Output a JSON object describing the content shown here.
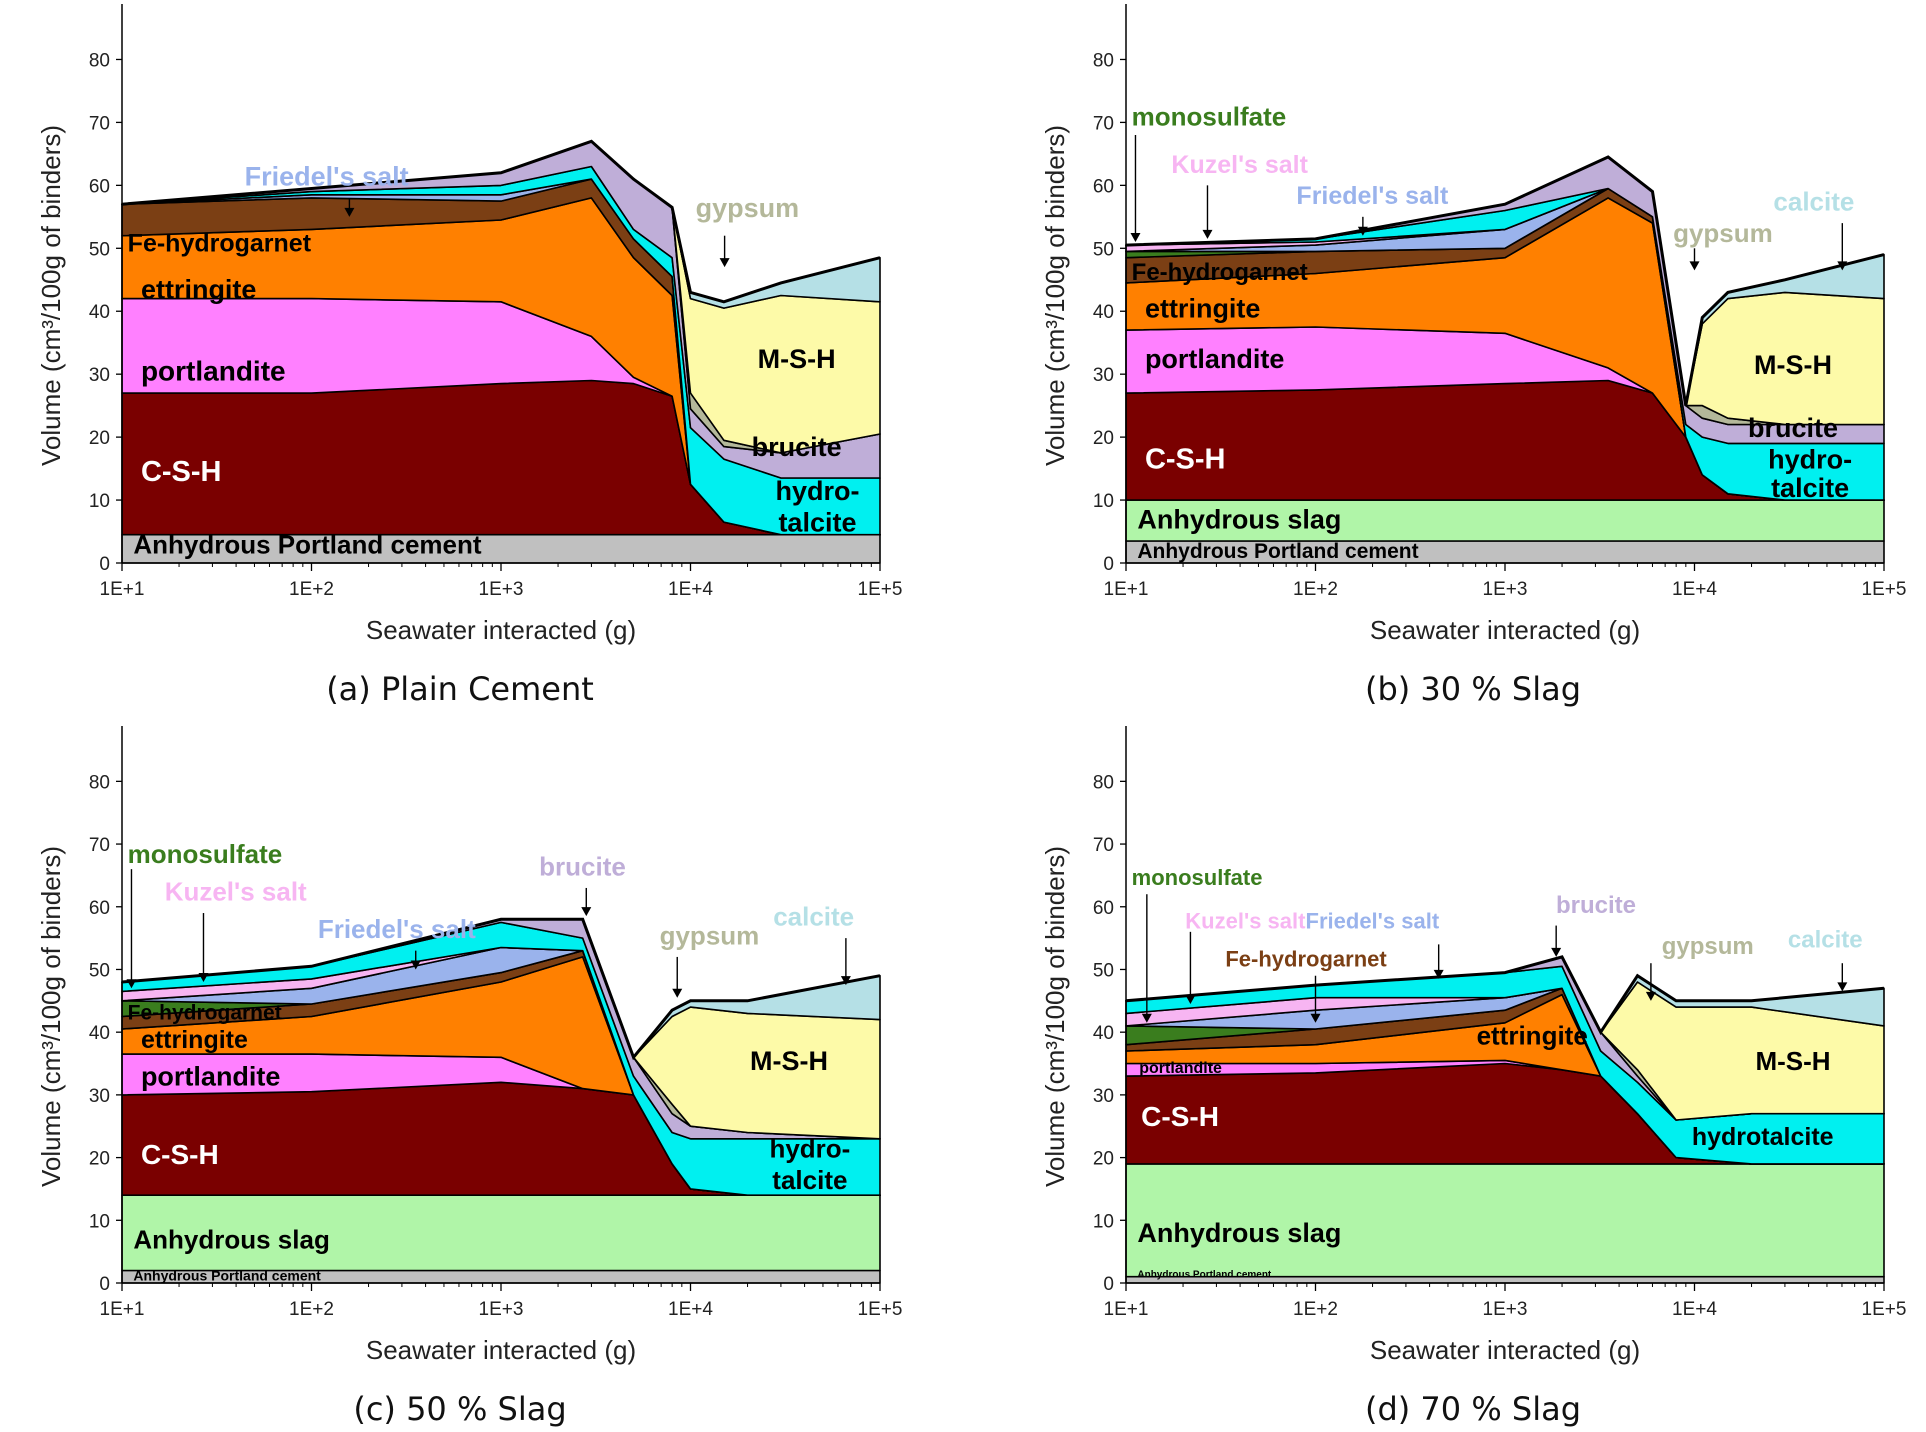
{
  "axes": {
    "xlabel": "Seawater interacted (g)",
    "ylabel": "Volume (cm³/100g of binders)",
    "xticks": [
      "1E+1",
      "1E+2",
      "1E+3",
      "1E+4",
      "1E+5"
    ],
    "yticks": [
      "0",
      "10",
      "20",
      "30",
      "40",
      "50",
      "60",
      "70",
      "80"
    ]
  },
  "colors": {
    "anhydrous_pc": "#c0c0c0",
    "anhydrous_slag": "#b0f5a8",
    "csh": "#7a0000",
    "portlandite": "#ff80ff",
    "ettringite": "#ff8000",
    "fe_hydrogarnet": "#7b3f14",
    "monosulfate": "#3a7d1e",
    "kuzels_salt": "#f7b5f2",
    "friedels_salt": "#9ab3ec",
    "cyan_phase": "#00f0f0",
    "brucite": "#bfaed8",
    "gypsum": "#b4b89a",
    "calcite": "#b5e0e6",
    "msh": "#fdfaa8",
    "hydrotalcite": "#00f0f0"
  },
  "chart_data": [
    {
      "type": "area",
      "caption": "(a) Plain Cement",
      "x_scale": "log",
      "xlim": [
        10,
        100000
      ],
      "ylim": [
        0,
        85
      ],
      "xlabel": "Seawater interacted (g)",
      "ylabel": "Volume (cm³/100g of binders)",
      "x": [
        10,
        100,
        1000,
        3000,
        5000,
        8000,
        10000,
        15000,
        30000,
        100000
      ],
      "series": [
        {
          "name": "Anhydrous Portland cement",
          "values": [
            4.5,
            4.5,
            4.5,
            4.5,
            4.5,
            4.5,
            4.5,
            4.5,
            4.5,
            4.5
          ]
        },
        {
          "name": "C-S-H",
          "values": [
            22.5,
            22.5,
            24,
            24.5,
            24,
            22,
            8,
            2,
            0,
            0
          ]
        },
        {
          "name": "portlandite",
          "values": [
            15,
            15,
            13,
            7,
            1,
            0,
            0,
            0,
            0,
            0
          ]
        },
        {
          "name": "ettringite",
          "values": [
            10,
            11,
            13,
            22,
            19,
            16,
            0,
            0,
            0,
            0
          ]
        },
        {
          "name": "Fe-hydrogarnet",
          "values": [
            5,
            5,
            3,
            3,
            3,
            3,
            0,
            0,
            0,
            0
          ]
        },
        {
          "name": "Friedel's salt",
          "values": [
            0,
            0.5,
            1,
            0,
            0,
            0,
            0,
            0,
            0,
            0
          ]
        },
        {
          "name": "hydrotalcite",
          "values": [
            0,
            0.5,
            1.5,
            2,
            1.5,
            3,
            9,
            10,
            9,
            9
          ]
        },
        {
          "name": "brucite",
          "values": [
            0,
            0.5,
            2,
            4,
            8,
            8,
            3,
            2,
            4,
            7
          ]
        },
        {
          "name": "gypsum",
          "values": [
            0,
            0,
            0,
            0,
            0,
            0,
            2.5,
            1,
            0,
            0
          ]
        },
        {
          "name": "M-S-H",
          "values": [
            0,
            0,
            0,
            0,
            0,
            0,
            15,
            21,
            25,
            21
          ]
        },
        {
          "name": "calcite",
          "values": [
            0,
            0,
            0,
            0,
            0,
            0,
            1,
            1,
            2,
            7
          ]
        }
      ],
      "labels": [
        "Fe-hydrogarnet",
        "ettringite",
        "portlandite",
        "C-S-H",
        "Anhydrous Portland cement",
        "Friedel's salt",
        "gypsum",
        "M-S-H",
        "brucite",
        "hydro-",
        "talcite"
      ]
    },
    {
      "type": "area",
      "caption": "(b) 30 % Slag",
      "x_scale": "log",
      "xlim": [
        10,
        100000
      ],
      "ylim": [
        0,
        85
      ],
      "xlabel": "Seawater interacted (g)",
      "ylabel": "Volume (cm³/100g of binders)",
      "x": [
        10,
        100,
        1000,
        3500,
        6000,
        9000,
        11000,
        15000,
        30000,
        100000
      ],
      "series": [
        {
          "name": "Anhydrous Portland cement",
          "values": [
            3.5,
            3.5,
            3.5,
            3.5,
            3.5,
            3.5,
            3.5,
            3.5,
            3.5,
            3.5
          ]
        },
        {
          "name": "Anhydrous slag",
          "values": [
            6.5,
            6.5,
            6.5,
            6.5,
            6.5,
            6.5,
            6.5,
            6.5,
            6.5,
            6.5
          ]
        },
        {
          "name": "C-S-H",
          "values": [
            17,
            17.5,
            18.5,
            19,
            17,
            10,
            4,
            1,
            0,
            0
          ]
        },
        {
          "name": "portlandite",
          "values": [
            10,
            10,
            8,
            2,
            0,
            0,
            0,
            0,
            0,
            0
          ]
        },
        {
          "name": "ettringite",
          "values": [
            7.5,
            8.5,
            12,
            27,
            27,
            0,
            0,
            0,
            0,
            0
          ]
        },
        {
          "name": "Fe-hydrogarnet",
          "values": [
            4,
            3.5,
            1.5,
            1.5,
            1,
            0,
            0,
            0,
            0,
            0
          ]
        },
        {
          "name": "monosulfate",
          "values": [
            1,
            0,
            0,
            0,
            0,
            0,
            0,
            0,
            0,
            0
          ]
        },
        {
          "name": "Friedel's salt",
          "values": [
            0,
            1,
            3,
            0,
            0,
            0,
            0,
            0,
            0,
            0
          ]
        },
        {
          "name": "Kuzel's salt",
          "values": [
            1,
            0.5,
            0,
            0,
            0,
            0,
            0,
            0,
            0,
            0
          ]
        },
        {
          "name": "hydrotalcite",
          "values": [
            0,
            0.5,
            3,
            0,
            0,
            2,
            6,
            8,
            9,
            9
          ]
        },
        {
          "name": "brucite",
          "values": [
            0,
            0,
            1,
            5,
            4,
            3,
            3,
            3,
            3,
            3
          ]
        },
        {
          "name": "gypsum",
          "values": [
            0,
            0,
            0,
            0,
            0,
            0,
            2,
            1,
            0,
            0
          ]
        },
        {
          "name": "M-S-H",
          "values": [
            0,
            0,
            0,
            0,
            0,
            0,
            13,
            19,
            21,
            20
          ]
        },
        {
          "name": "calcite",
          "values": [
            0,
            0,
            0,
            0,
            0,
            0,
            1,
            1,
            2,
            7
          ]
        }
      ],
      "labels": [
        "monosulfate",
        "Kuzel's salt",
        "Friedel's salt",
        "Fe-hydrogarnet",
        "ettringite",
        "portlandite",
        "C-S-H",
        "Anhydrous slag",
        "Anhydrous Portland cement",
        "gypsum",
        "calcite",
        "M-S-H",
        "brucite",
        "hydro-",
        "talcite"
      ]
    },
    {
      "type": "area",
      "caption": "(c) 50 % Slag",
      "x_scale": "log",
      "xlim": [
        10,
        100000
      ],
      "ylim": [
        0,
        85
      ],
      "xlabel": "Seawater interacted (g)",
      "ylabel": "Volume (cm³/100g of binders)",
      "x": [
        10,
        100,
        1000,
        2700,
        5000,
        8000,
        10000,
        20000,
        100000
      ],
      "series": [
        {
          "name": "Anhydrous Portland cement",
          "values": [
            2,
            2,
            2,
            2,
            2,
            2,
            2,
            2,
            2
          ]
        },
        {
          "name": "Anhydrous slag",
          "values": [
            12,
            12,
            12,
            12,
            12,
            12,
            12,
            12,
            12
          ]
        },
        {
          "name": "C-S-H",
          "values": [
            16,
            16.5,
            18,
            17,
            16,
            5,
            1,
            0,
            0
          ]
        },
        {
          "name": "portlandite",
          "values": [
            6.5,
            6,
            4,
            0,
            0,
            0,
            0,
            0,
            0
          ]
        },
        {
          "name": "ettringite",
          "values": [
            4,
            6,
            12,
            21,
            0,
            0,
            0,
            0,
            0
          ]
        },
        {
          "name": "Fe-hydrogarnet",
          "values": [
            2,
            2,
            1.5,
            1,
            0,
            0,
            0,
            0,
            0
          ]
        },
        {
          "name": "monosulfate",
          "values": [
            2.5,
            0,
            0,
            0,
            0,
            0,
            0,
            0,
            0
          ]
        },
        {
          "name": "Friedel's salt",
          "values": [
            0,
            2.5,
            4,
            0,
            0,
            0,
            0,
            0,
            0
          ]
        },
        {
          "name": "Kuzel's salt",
          "values": [
            1.5,
            1.5,
            0,
            0,
            0,
            0,
            0,
            0,
            0
          ]
        },
        {
          "name": "hydrotalcite",
          "values": [
            1.5,
            2,
            4,
            2,
            3,
            5,
            8,
            9,
            9
          ]
        },
        {
          "name": "brucite",
          "values": [
            0,
            0,
            0.5,
            3,
            3,
            3,
            2,
            1,
            0
          ]
        },
        {
          "name": "gypsum",
          "values": [
            0,
            0,
            0,
            0,
            0,
            1.5,
            0,
            0,
            0
          ]
        },
        {
          "name": "M-S-H",
          "values": [
            0,
            0,
            0,
            0,
            0,
            14,
            19,
            19,
            19
          ]
        },
        {
          "name": "calcite",
          "values": [
            0,
            0,
            0,
            0,
            0,
            1,
            1,
            2,
            7
          ]
        }
      ],
      "labels": [
        "monosulfate",
        "Kuzel's salt",
        "Friedel's salt",
        "brucite",
        "gypsum",
        "calcite",
        "Fe-hydrogarnet",
        "ettringite",
        "portlandite",
        "C-S-H",
        "Anhydrous slag",
        "Anhydrous Portland cement",
        "M-S-H",
        "hydro-",
        "talcite"
      ]
    },
    {
      "type": "area",
      "caption": "(d) 70 % Slag",
      "x_scale": "log",
      "xlim": [
        10,
        100000
      ],
      "ylim": [
        0,
        85
      ],
      "xlabel": "Seawater interacted (g)",
      "ylabel": "Volume (cm³/100g of binders)",
      "x": [
        10,
        100,
        1000,
        2000,
        3200,
        5000,
        8000,
        20000,
        100000
      ],
      "series": [
        {
          "name": "Anhydrous Portland cement",
          "values": [
            1,
            1,
            1,
            1,
            1,
            1,
            1,
            1,
            1
          ]
        },
        {
          "name": "Anhydrous slag",
          "values": [
            18,
            18,
            18,
            18,
            18,
            18,
            18,
            18,
            18
          ]
        },
        {
          "name": "C-S-H",
          "values": [
            14,
            14.5,
            16,
            15,
            14,
            8,
            1,
            0,
            0
          ]
        },
        {
          "name": "portlandite",
          "values": [
            2,
            1.5,
            0.5,
            0,
            0,
            0,
            0,
            0,
            0
          ]
        },
        {
          "name": "ettringite",
          "values": [
            2,
            3,
            6,
            12,
            0,
            0,
            0,
            0,
            0
          ]
        },
        {
          "name": "Fe-hydrogarnet",
          "values": [
            1,
            2.5,
            2,
            1,
            0,
            0,
            0,
            0,
            0
          ]
        },
        {
          "name": "monosulfate",
          "values": [
            3,
            0,
            0,
            0,
            0,
            0,
            0,
            0,
            0
          ]
        },
        {
          "name": "Friedel's salt",
          "values": [
            0,
            3,
            2,
            0,
            0,
            0,
            0,
            0,
            0
          ]
        },
        {
          "name": "Kuzel's salt",
          "values": [
            2,
            2,
            0,
            0,
            0,
            0,
            0,
            0,
            0
          ]
        },
        {
          "name": "hydrotalcite",
          "values": [
            2,
            2,
            4,
            3.5,
            4,
            5,
            6,
            8,
            8
          ]
        },
        {
          "name": "brucite",
          "values": [
            0,
            0,
            0,
            1.5,
            3,
            1,
            0,
            0,
            0
          ]
        },
        {
          "name": "gypsum",
          "values": [
            0,
            0,
            0,
            0,
            0,
            1,
            0,
            0,
            0
          ]
        },
        {
          "name": "M-S-H",
          "values": [
            0,
            0,
            0,
            0,
            0,
            14,
            18,
            17,
            14
          ]
        },
        {
          "name": "calcite",
          "values": [
            0,
            0,
            0,
            0,
            0,
            1,
            1,
            1,
            6
          ]
        }
      ],
      "labels": [
        "monosulfate",
        "Kuzel's salt",
        "Friedel's salt",
        "brucite",
        "Fe-hydrogarnet",
        "gypsum",
        "calcite",
        "ettringite",
        "portlandite",
        "C-S-H",
        "Anhydrous slag",
        "Anhydrous Portland cement",
        "M-S-H",
        "hydrotalcite"
      ]
    }
  ]
}
